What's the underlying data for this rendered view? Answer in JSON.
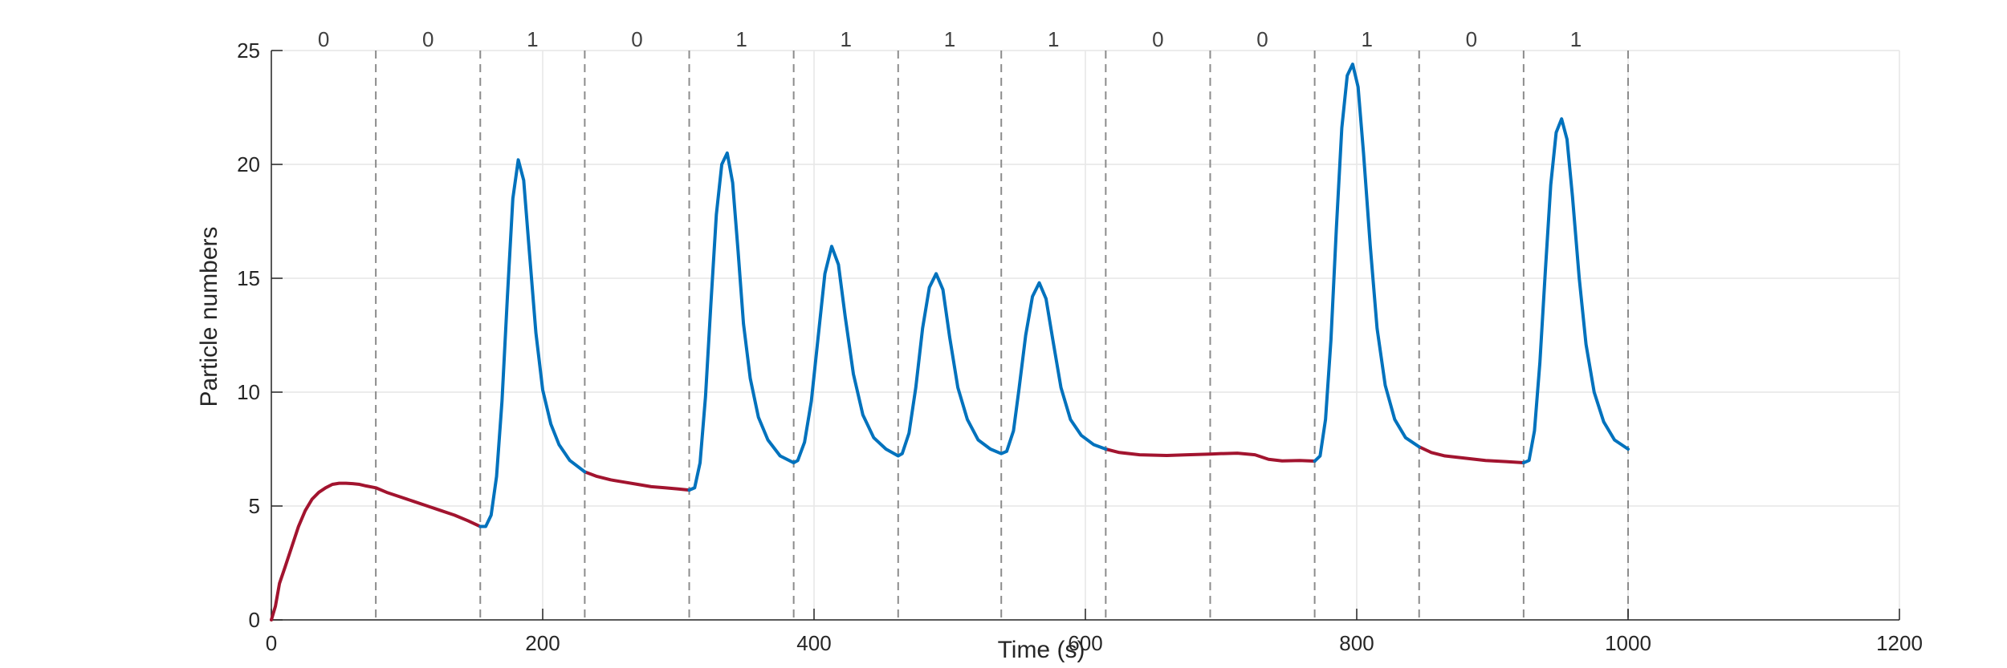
{
  "chart_data": {
    "type": "line",
    "xlabel": "Time (s)",
    "ylabel": "Particle numbers",
    "xlim": [
      0,
      1200
    ],
    "ylim": [
      0,
      25
    ],
    "xticks": [
      0,
      200,
      400,
      600,
      800,
      1000,
      1200
    ],
    "yticks": [
      0,
      5,
      10,
      15,
      20,
      25
    ],
    "grid": true,
    "colors": {
      "bit0": "#a2142f",
      "bit1": "#0072bd",
      "divider": "#8c8c8c",
      "grid": "#e6e6e6",
      "axis": "#262626"
    },
    "bit_labels": [
      "0",
      "0",
      "1",
      "0",
      "1",
      "1",
      "1",
      "1",
      "0",
      "0",
      "1",
      "0",
      "1"
    ],
    "interval_boundaries": [
      0,
      77,
      154,
      231,
      308,
      385,
      462,
      538,
      615,
      692,
      769,
      846,
      923,
      1000
    ],
    "interval_y_start": [
      0,
      5.8,
      4.1,
      6.5,
      5.7,
      6.9,
      7.2,
      7.3,
      7.5,
      7.3,
      7.0,
      7.6,
      6.9
    ],
    "peaks": [
      {
        "interval": 2,
        "t": 182,
        "value": 20.2
      },
      {
        "interval": 4,
        "t": 336,
        "value": 20.5
      },
      {
        "interval": 5,
        "t": 413,
        "value": 16.4
      },
      {
        "interval": 6,
        "t": 490,
        "value": 15.2
      },
      {
        "interval": 7,
        "t": 566,
        "value": 14.8
      },
      {
        "interval": 10,
        "t": 797,
        "value": 24.4
      },
      {
        "interval": 12,
        "t": 951,
        "value": 22.0
      }
    ],
    "series": [
      {
        "bit": "0",
        "points": [
          [
            0,
            0
          ],
          [
            3,
            0.6
          ],
          [
            6,
            1.6
          ],
          [
            10,
            2.3
          ],
          [
            15,
            3.2
          ],
          [
            20,
            4.1
          ],
          [
            25,
            4.8
          ],
          [
            30,
            5.3
          ],
          [
            35,
            5.6
          ],
          [
            40,
            5.8
          ],
          [
            45,
            5.95
          ],
          [
            50,
            6.0
          ],
          [
            55,
            6.0
          ],
          [
            60,
            5.98
          ],
          [
            65,
            5.95
          ],
          [
            70,
            5.88
          ],
          [
            77,
            5.8
          ],
          [
            85,
            5.6
          ],
          [
            95,
            5.4
          ],
          [
            105,
            5.2
          ],
          [
            115,
            5.0
          ],
          [
            125,
            4.8
          ],
          [
            135,
            4.6
          ],
          [
            145,
            4.35
          ],
          [
            154,
            4.1
          ],
          [
            231,
            6.5
          ],
          [
            240,
            6.3
          ],
          [
            250,
            6.15
          ],
          [
            260,
            6.05
          ],
          [
            270,
            5.95
          ],
          [
            280,
            5.85
          ],
          [
            290,
            5.8
          ],
          [
            300,
            5.75
          ],
          [
            308,
            5.7
          ],
          [
            615,
            7.5
          ],
          [
            625,
            7.35
          ],
          [
            640,
            7.25
          ],
          [
            660,
            7.22
          ],
          [
            675,
            7.25
          ],
          [
            692,
            7.28
          ],
          [
            700,
            7.3
          ],
          [
            712,
            7.32
          ],
          [
            725,
            7.25
          ],
          [
            735,
            7.05
          ],
          [
            745,
            6.98
          ],
          [
            758,
            7.0
          ],
          [
            769,
            6.97
          ],
          [
            846,
            7.6
          ],
          [
            855,
            7.35
          ],
          [
            865,
            7.2
          ],
          [
            880,
            7.1
          ],
          [
            895,
            7.0
          ],
          [
            910,
            6.95
          ],
          [
            923,
            6.9
          ]
        ]
      },
      {
        "bit": "1",
        "points": [
          [
            154,
            4.1
          ],
          [
            158,
            4.1
          ],
          [
            162,
            4.6
          ],
          [
            166,
            6.3
          ],
          [
            170,
            9.6
          ],
          [
            174,
            14.2
          ],
          [
            178,
            18.5
          ],
          [
            182,
            20.2
          ],
          [
            186,
            19.3
          ],
          [
            190,
            16.3
          ],
          [
            195,
            12.6
          ],
          [
            200,
            10.1
          ],
          [
            206,
            8.6
          ],
          [
            212,
            7.7
          ],
          [
            220,
            7.0
          ],
          [
            231,
            6.5
          ],
          [
            308,
            5.7
          ],
          [
            312,
            5.8
          ],
          [
            316,
            6.9
          ],
          [
            320,
            9.8
          ],
          [
            324,
            13.9
          ],
          [
            328,
            17.8
          ],
          [
            332,
            20.0
          ],
          [
            336,
            20.5
          ],
          [
            340,
            19.2
          ],
          [
            344,
            16.2
          ],
          [
            348,
            13.0
          ],
          [
            353,
            10.6
          ],
          [
            359,
            8.9
          ],
          [
            366,
            7.9
          ],
          [
            375,
            7.2
          ],
          [
            385,
            6.9
          ],
          [
            388,
            7.0
          ],
          [
            393,
            7.8
          ],
          [
            398,
            9.6
          ],
          [
            403,
            12.4
          ],
          [
            408,
            15.2
          ],
          [
            413,
            16.4
          ],
          [
            418,
            15.6
          ],
          [
            423,
            13.3
          ],
          [
            429,
            10.8
          ],
          [
            436,
            9.0
          ],
          [
            444,
            8.0
          ],
          [
            453,
            7.5
          ],
          [
            462,
            7.2
          ],
          [
            465,
            7.3
          ],
          [
            470,
            8.2
          ],
          [
            475,
            10.2
          ],
          [
            480,
            12.8
          ],
          [
            485,
            14.6
          ],
          [
            490,
            15.2
          ],
          [
            495,
            14.5
          ],
          [
            500,
            12.4
          ],
          [
            506,
            10.2
          ],
          [
            513,
            8.8
          ],
          [
            521,
            7.9
          ],
          [
            530,
            7.5
          ],
          [
            538,
            7.3
          ],
          [
            542,
            7.4
          ],
          [
            547,
            8.3
          ],
          [
            551,
            10.1
          ],
          [
            556,
            12.5
          ],
          [
            561,
            14.2
          ],
          [
            566,
            14.8
          ],
          [
            571,
            14.1
          ],
          [
            576,
            12.3
          ],
          [
            582,
            10.2
          ],
          [
            589,
            8.8
          ],
          [
            597,
            8.1
          ],
          [
            606,
            7.7
          ],
          [
            615,
            7.5
          ],
          [
            769,
            6.97
          ],
          [
            773,
            7.2
          ],
          [
            777,
            8.8
          ],
          [
            781,
            12.3
          ],
          [
            785,
            17.2
          ],
          [
            789,
            21.6
          ],
          [
            793,
            23.9
          ],
          [
            797,
            24.4
          ],
          [
            801,
            23.4
          ],
          [
            805,
            20.5
          ],
          [
            810,
            16.4
          ],
          [
            815,
            12.8
          ],
          [
            821,
            10.3
          ],
          [
            828,
            8.8
          ],
          [
            836,
            8.0
          ],
          [
            846,
            7.6
          ],
          [
            923,
            6.9
          ],
          [
            927,
            7.0
          ],
          [
            931,
            8.3
          ],
          [
            935,
            11.3
          ],
          [
            939,
            15.3
          ],
          [
            943,
            19.1
          ],
          [
            947,
            21.4
          ],
          [
            951,
            22.0
          ],
          [
            955,
            21.1
          ],
          [
            959,
            18.6
          ],
          [
            964,
            15.0
          ],
          [
            969,
            12.1
          ],
          [
            975,
            10.0
          ],
          [
            982,
            8.7
          ],
          [
            990,
            7.9
          ],
          [
            1000,
            7.5
          ]
        ]
      }
    ]
  }
}
